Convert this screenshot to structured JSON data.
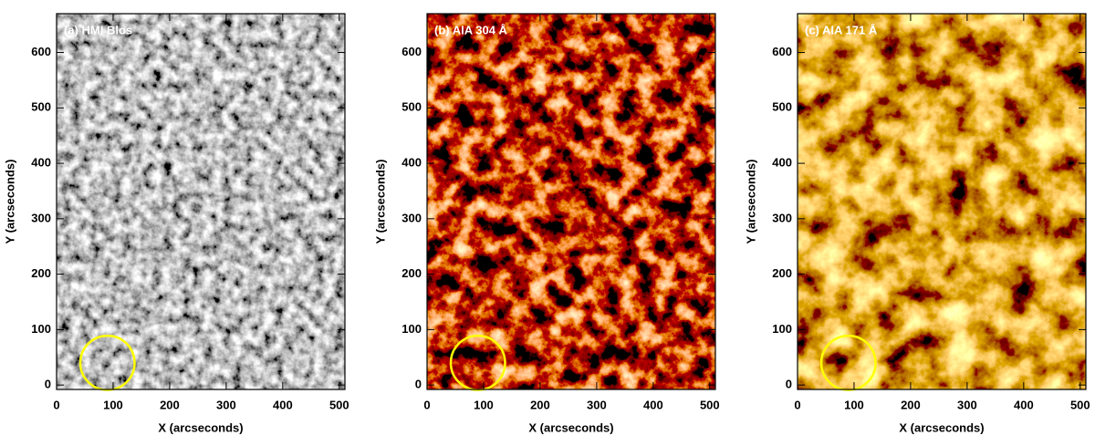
{
  "chart_data": [
    {
      "type": "image",
      "title": "(a) HMI Blos",
      "xlabel": "X (arcseconds)",
      "ylabel": "Y (arcseconds)",
      "xlim": [
        0,
        510
      ],
      "ylim": [
        -8,
        670
      ],
      "xticks": [
        0,
        100,
        200,
        300,
        400,
        500
      ],
      "yticks": [
        0,
        100,
        200,
        300,
        400,
        500,
        600
      ],
      "colormap": "gray",
      "highlight": {
        "x": 90,
        "y": 40,
        "r": 48,
        "color": "#ffff00"
      }
    },
    {
      "type": "image",
      "title": "(b) AIA 304 Å",
      "xlabel": "X (arcseconds)",
      "ylabel": "Y (arcseconds)",
      "xlim": [
        0,
        510
      ],
      "ylim": [
        -8,
        670
      ],
      "xticks": [
        0,
        100,
        200,
        300,
        400,
        500
      ],
      "yticks": [
        0,
        100,
        200,
        300,
        400,
        500,
        600
      ],
      "colormap": "red",
      "highlight": {
        "x": 90,
        "y": 40,
        "r": 48,
        "color": "#ffff00"
      }
    },
    {
      "type": "image",
      "title": "(c) AIA 171 Å",
      "xlabel": "X (arcseconds)",
      "ylabel": "Y (arcseconds)",
      "xlim": [
        0,
        510
      ],
      "ylim": [
        -8,
        670
      ],
      "xticks": [
        0,
        100,
        200,
        300,
        400,
        500
      ],
      "yticks": [
        0,
        100,
        200,
        300,
        400,
        500,
        600
      ],
      "colormap": "gold",
      "highlight": {
        "x": 90,
        "y": 40,
        "r": 48,
        "color": "#ffff00"
      }
    }
  ]
}
